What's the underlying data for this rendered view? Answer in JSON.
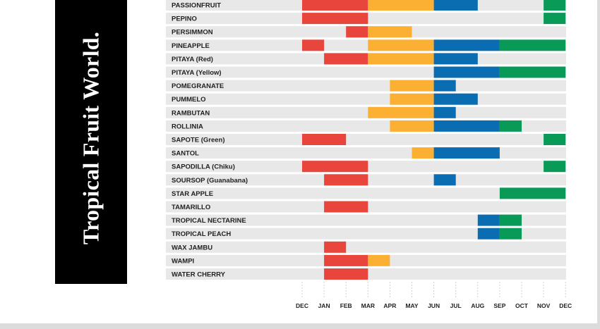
{
  "brand": {
    "text": "Tropical Fruit World."
  },
  "colors": {
    "row_bg": "#e8e8e8",
    "red": "#e8453c",
    "orange": "#fbb033",
    "blue": "#0a6cb1",
    "green": "#0a9a57"
  },
  "chart_data": {
    "type": "gantt",
    "title": "",
    "months": [
      "DEC",
      "JAN",
      "FEB",
      "MAR",
      "APR",
      "MAY",
      "JUN",
      "JUL",
      "AUG",
      "SEP",
      "OCT",
      "NOV",
      "DEC"
    ],
    "grid": false,
    "rows": [
      {
        "fruit": "PASSIONFRUIT",
        "segments": [
          {
            "start": "DEC",
            "end": "MAR",
            "color": "red"
          },
          {
            "start": "MAR",
            "end": "JUN",
            "color": "orange"
          },
          {
            "start": "JUN",
            "end": "AUG",
            "color": "blue"
          },
          {
            "start": "NOV",
            "end": "DEC",
            "color": "green"
          }
        ]
      },
      {
        "fruit": "PEPINO",
        "segments": [
          {
            "start": "DEC",
            "end": "MAR",
            "color": "red"
          },
          {
            "start": "NOV",
            "end": "DEC",
            "color": "green"
          }
        ]
      },
      {
        "fruit": "PERSIMMON",
        "segments": [
          {
            "start": "FEB",
            "end": "MAR",
            "color": "red"
          },
          {
            "start": "MAR",
            "end": "MAY",
            "color": "orange"
          }
        ]
      },
      {
        "fruit": "PINEAPPLE",
        "segments": [
          {
            "start": "DEC",
            "end": "JAN",
            "color": "red"
          },
          {
            "start": "MAR",
            "end": "JUN",
            "color": "orange"
          },
          {
            "start": "JUN",
            "end": "SEP",
            "color": "blue"
          },
          {
            "start": "SEP",
            "end": "DEC",
            "color": "green"
          }
        ]
      },
      {
        "fruit": "PITAYA (Red)",
        "segments": [
          {
            "start": "JAN",
            "end": "MAR",
            "color": "red"
          },
          {
            "start": "MAR",
            "end": "JUN",
            "color": "orange"
          },
          {
            "start": "JUN",
            "end": "AUG",
            "color": "blue"
          }
        ]
      },
      {
        "fruit": "PITAYA (Yellow)",
        "segments": [
          {
            "start": "JUN",
            "end": "SEP",
            "color": "blue"
          },
          {
            "start": "SEP",
            "end": "DEC",
            "color": "green"
          }
        ]
      },
      {
        "fruit": "POMEGRANATE",
        "segments": [
          {
            "start": "APR",
            "end": "JUN",
            "color": "orange"
          },
          {
            "start": "JUN",
            "end": "JUL",
            "color": "blue"
          }
        ]
      },
      {
        "fruit": "PUMMELO",
        "segments": [
          {
            "start": "APR",
            "end": "JUN",
            "color": "orange"
          },
          {
            "start": "JUN",
            "end": "AUG",
            "color": "blue"
          }
        ]
      },
      {
        "fruit": "RAMBUTAN",
        "segments": [
          {
            "start": "MAR",
            "end": "JUN",
            "color": "orange"
          },
          {
            "start": "JUN",
            "end": "JUL",
            "color": "blue"
          }
        ]
      },
      {
        "fruit": "ROLLINIA",
        "segments": [
          {
            "start": "APR",
            "end": "JUN",
            "color": "orange"
          },
          {
            "start": "JUN",
            "end": "SEP",
            "color": "blue"
          },
          {
            "start": "SEP",
            "end": "OCT",
            "color": "green"
          }
        ]
      },
      {
        "fruit": "SAPOTE (Green)",
        "segments": [
          {
            "start": "DEC",
            "end": "FEB",
            "color": "red"
          },
          {
            "start": "NOV",
            "end": "DEC",
            "color": "green"
          }
        ]
      },
      {
        "fruit": "SANTOL",
        "segments": [
          {
            "start": "MAY",
            "end": "JUN",
            "color": "orange"
          },
          {
            "start": "JUN",
            "end": "SEP",
            "color": "blue"
          }
        ]
      },
      {
        "fruit": "SAPODILLA (Chiku)",
        "segments": [
          {
            "start": "DEC",
            "end": "MAR",
            "color": "red"
          },
          {
            "start": "NOV",
            "end": "DEC",
            "color": "green"
          }
        ]
      },
      {
        "fruit": "SOURSOP (Guanabana)",
        "segments": [
          {
            "start": "JAN",
            "end": "MAR",
            "color": "red"
          },
          {
            "start": "JUN",
            "end": "JUL",
            "color": "blue"
          }
        ]
      },
      {
        "fruit": "STAR APPLE",
        "segments": [
          {
            "start": "SEP",
            "end": "DEC",
            "color": "green"
          }
        ]
      },
      {
        "fruit": "TAMARILLO",
        "segments": [
          {
            "start": "JAN",
            "end": "MAR",
            "color": "red"
          }
        ]
      },
      {
        "fruit": "TROPICAL NECTARINE",
        "segments": [
          {
            "start": "AUG",
            "end": "SEP",
            "color": "blue"
          },
          {
            "start": "SEP",
            "end": "OCT",
            "color": "green"
          }
        ]
      },
      {
        "fruit": "TROPICAL PEACH",
        "segments": [
          {
            "start": "AUG",
            "end": "SEP",
            "color": "blue"
          },
          {
            "start": "SEP",
            "end": "OCT",
            "color": "green"
          }
        ]
      },
      {
        "fruit": "WAX JAMBU",
        "segments": [
          {
            "start": "JAN",
            "end": "FEB",
            "color": "red"
          }
        ]
      },
      {
        "fruit": "WAMPI",
        "segments": [
          {
            "start": "JAN",
            "end": "MAR",
            "color": "red"
          },
          {
            "start": "MAR",
            "end": "APR",
            "color": "orange"
          }
        ]
      },
      {
        "fruit": "WATER CHERRY",
        "segments": [
          {
            "start": "JAN",
            "end": "MAR",
            "color": "red"
          }
        ]
      }
    ]
  }
}
